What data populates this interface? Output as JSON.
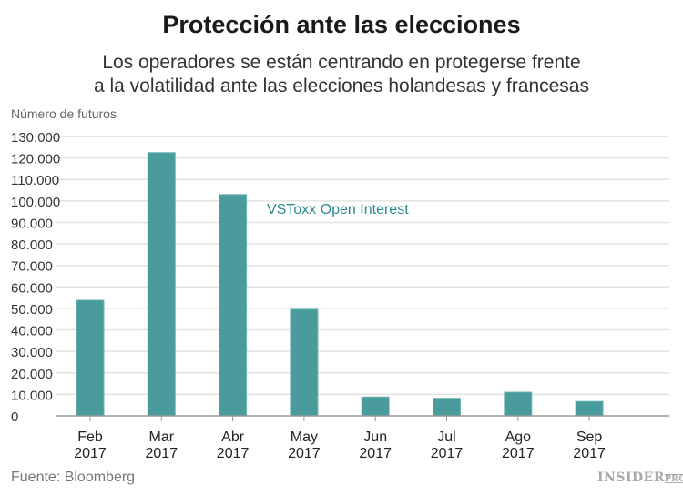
{
  "title": "Protección ante las elecciones",
  "subtitle_lines": [
    "Los operadores se están centrando en protegerse frente",
    "a la volatilidad ante las elecciones holandesas y francesas"
  ],
  "source": "Fuente: Bloomberg",
  "logo": {
    "main": "INSIDER",
    "suffix": "PRO"
  },
  "chart_data": {
    "type": "bar",
    "ylabel": "Número de futuros",
    "categories": [
      [
        "Feb",
        "2017"
      ],
      [
        "Mar",
        "2017"
      ],
      [
        "Abr",
        "2017"
      ],
      [
        "May",
        "2017"
      ],
      [
        "Jun",
        "2017"
      ],
      [
        "Jul",
        "2017"
      ],
      [
        "Ago",
        "2017"
      ],
      [
        "Sep",
        "2017"
      ]
    ],
    "series": [
      {
        "name": "VSToxx Open Interest",
        "values": [
          53800,
          122500,
          103000,
          49600,
          8800,
          8200,
          11000,
          6700
        ]
      }
    ],
    "ylim": [
      0,
      130000
    ],
    "yticks": [
      0,
      10000,
      20000,
      30000,
      40000,
      50000,
      60000,
      70000,
      80000,
      90000,
      100000,
      110000,
      120000,
      130000
    ],
    "ytick_labels": [
      "0",
      "10.000",
      "20.000",
      "30.000",
      "40.000",
      "50.000",
      "60.000",
      "70.000",
      "80.000",
      "90.000",
      "100.000",
      "110.000",
      "120.000",
      "130.000"
    ],
    "grid": true,
    "bar_color": "#4a9b9c",
    "label_color": "#2a8a8c"
  }
}
